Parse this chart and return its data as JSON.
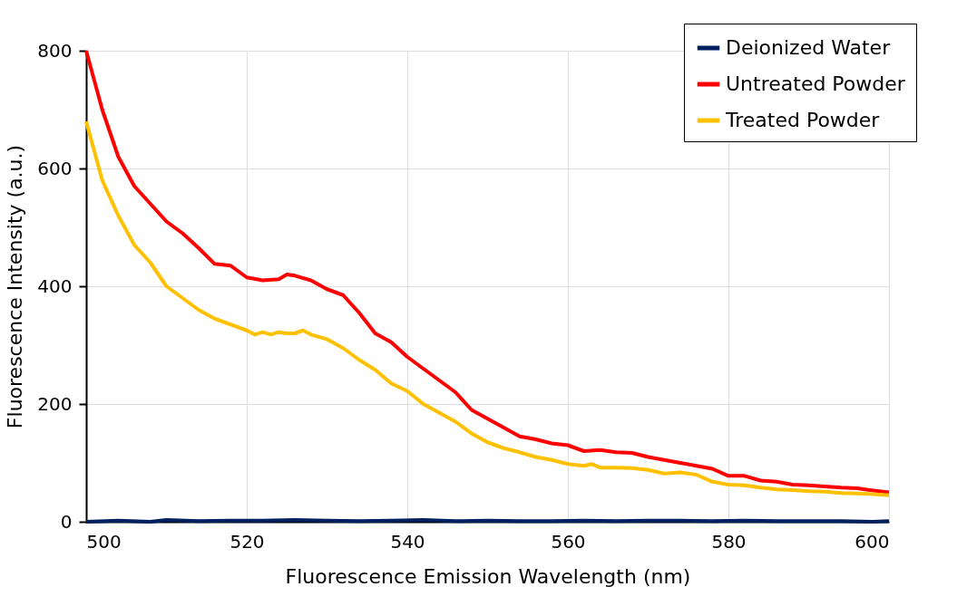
{
  "chart_data": {
    "type": "line",
    "xlabel": "Fluorescence Emission Wavelength (nm)",
    "ylabel": "Fluorescence Intensity (a.u.)",
    "xlim": [
      500,
      600
    ],
    "xticks": [
      500,
      520,
      540,
      560,
      580,
      600
    ],
    "ylim": [
      0,
      800
    ],
    "yticks": [
      0,
      200,
      400,
      600,
      800
    ],
    "grid": true,
    "legend": "top right",
    "marker": "none",
    "line_style": "solid",
    "series": [
      {
        "name": "Deionized Water",
        "color": "#002060",
        "x": [
          500,
          504,
          508,
          510,
          514,
          518,
          522,
          526,
          530,
          534,
          538,
          542,
          546,
          550,
          554,
          558,
          562,
          566,
          570,
          574,
          578,
          582,
          586,
          590,
          594,
          598,
          600
        ],
        "values": [
          0,
          2,
          0,
          3,
          1,
          2,
          2,
          3,
          2,
          1,
          2,
          3,
          1,
          2,
          1,
          1,
          2,
          1,
          2,
          2,
          1,
          2,
          1,
          1,
          1,
          0,
          1
        ]
      },
      {
        "name": "Untreated Powder",
        "color": "#ff0000",
        "x": [
          500,
          502,
          504,
          506,
          508,
          510,
          512,
          514,
          516,
          518,
          520,
          522,
          524,
          525,
          526,
          528,
          530,
          532,
          534,
          536,
          538,
          540,
          542,
          544,
          546,
          548,
          550,
          552,
          554,
          556,
          558,
          560,
          562,
          564,
          566,
          568,
          570,
          572,
          574,
          576,
          578,
          580,
          582,
          584,
          586,
          588,
          590,
          592,
          594,
          596,
          598,
          600
        ],
        "values": [
          800,
          700,
          620,
          570,
          540,
          510,
          490,
          465,
          438,
          435,
          415,
          410,
          412,
          420,
          418,
          410,
          395,
          385,
          355,
          320,
          305,
          280,
          260,
          240,
          220,
          190,
          175,
          160,
          145,
          140,
          133,
          130,
          120,
          122,
          118,
          117,
          110,
          105,
          100,
          95,
          90,
          78,
          78,
          70,
          68,
          63,
          62,
          60,
          58,
          57,
          53,
          50
        ]
      },
      {
        "name": "Treated Powder",
        "color": "#ffc000",
        "x": [
          500,
          502,
          504,
          506,
          508,
          510,
          512,
          514,
          516,
          518,
          520,
          521,
          522,
          523,
          524,
          525,
          526,
          527,
          528,
          530,
          532,
          534,
          536,
          538,
          540,
          542,
          544,
          546,
          548,
          550,
          552,
          554,
          556,
          558,
          560,
          562,
          563,
          564,
          566,
          568,
          570,
          572,
          574,
          576,
          578,
          580,
          582,
          584,
          586,
          588,
          590,
          592,
          594,
          596,
          598,
          600
        ],
        "values": [
          680,
          580,
          520,
          470,
          440,
          400,
          380,
          360,
          345,
          335,
          325,
          318,
          322,
          318,
          322,
          320,
          320,
          325,
          318,
          310,
          295,
          275,
          258,
          235,
          222,
          200,
          185,
          170,
          150,
          135,
          125,
          118,
          110,
          105,
          98,
          95,
          98,
          92,
          92,
          91,
          88,
          82,
          84,
          80,
          68,
          63,
          62,
          58,
          55,
          54,
          52,
          51,
          49,
          48,
          47,
          45
        ]
      }
    ]
  }
}
